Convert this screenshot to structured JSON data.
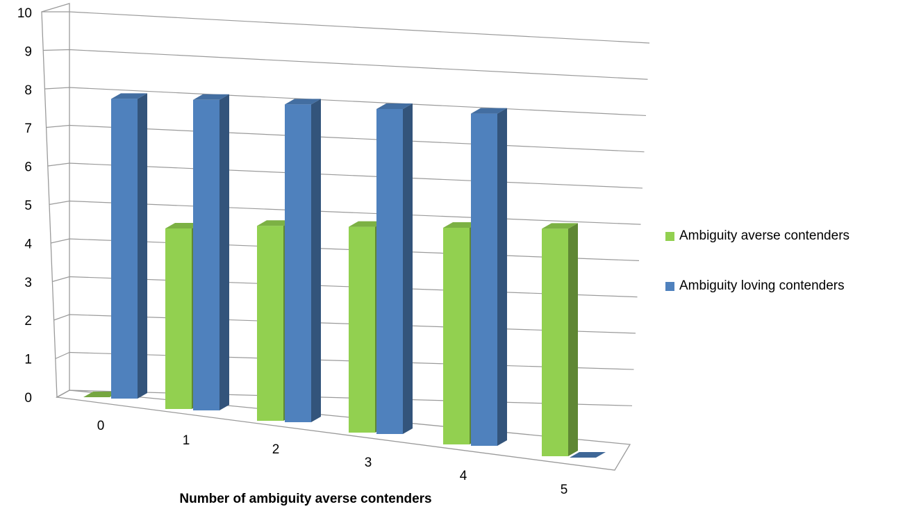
{
  "chart_data": {
    "type": "bar",
    "variant": "3d-clustered-column",
    "title": "",
    "xlabel": "Number of ambiguity averse contenders",
    "ylabel": "",
    "ylim": [
      0,
      10
    ],
    "yticks": [
      "0",
      "1",
      "2",
      "3",
      "4",
      "5",
      "6",
      "7",
      "8",
      "9",
      "10"
    ],
    "categories": [
      "0",
      "1",
      "2",
      "3",
      "4",
      "5"
    ],
    "series": [
      {
        "name": "Ambiguity averse contenders",
        "values": [
          0,
          5.0,
          5.4,
          5.7,
          6.0,
          6.3
        ],
        "color": "#92D050"
      },
      {
        "name": "Ambiguity loving contenders",
        "values": [
          8.3,
          8.6,
          8.8,
          9.0,
          9.2,
          0
        ],
        "color": "#4F81BD"
      }
    ],
    "grid": true,
    "legend_position": "right"
  }
}
